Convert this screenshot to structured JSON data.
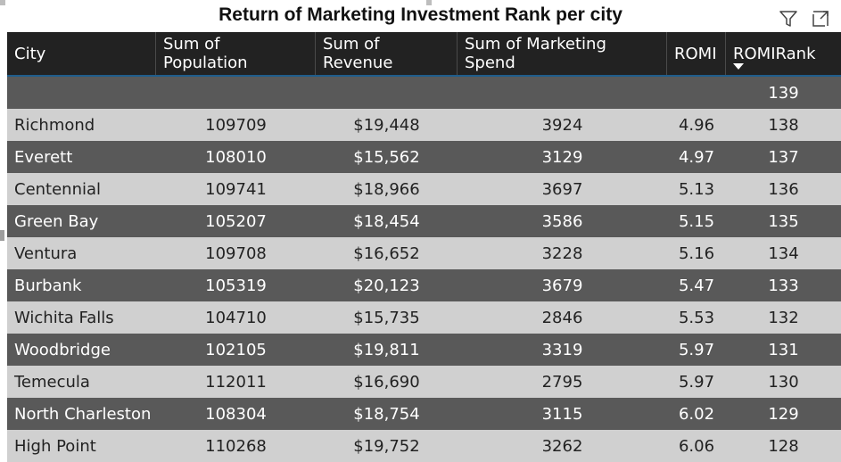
{
  "title": "Return of Marketing Investment Rank per city",
  "icons": [
    "filter-icon",
    "focus-mode-icon"
  ],
  "colors": {
    "header_bg": "#222222",
    "row_dark": "#595959",
    "row_light": "#d0d0d0",
    "accent": "#1f5d8c"
  },
  "columns": [
    "City",
    "Sum of Population",
    "Sum of Revenue",
    "Sum of Marketing Spend",
    "ROMI",
    "ROMIRank"
  ],
  "sort": {
    "column": "ROMIRank",
    "direction": "descending"
  },
  "rows": [
    {
      "city": "",
      "population": "",
      "revenue": "",
      "spend": "",
      "romi": "",
      "rank": "139"
    },
    {
      "city": "Richmond",
      "population": "109709",
      "revenue": "$19,448",
      "spend": "3924",
      "romi": "4.96",
      "rank": "138"
    },
    {
      "city": "Everett",
      "population": "108010",
      "revenue": "$15,562",
      "spend": "3129",
      "romi": "4.97",
      "rank": "137"
    },
    {
      "city": "Centennial",
      "population": "109741",
      "revenue": "$18,966",
      "spend": "3697",
      "romi": "5.13",
      "rank": "136"
    },
    {
      "city": "Green Bay",
      "population": "105207",
      "revenue": "$18,454",
      "spend": "3586",
      "romi": "5.15",
      "rank": "135"
    },
    {
      "city": "Ventura",
      "population": "109708",
      "revenue": "$16,652",
      "spend": "3228",
      "romi": "5.16",
      "rank": "134"
    },
    {
      "city": "Burbank",
      "population": "105319",
      "revenue": "$20,123",
      "spend": "3679",
      "romi": "5.47",
      "rank": "133"
    },
    {
      "city": "Wichita Falls",
      "population": "104710",
      "revenue": "$15,735",
      "spend": "2846",
      "romi": "5.53",
      "rank": "132"
    },
    {
      "city": "Woodbridge",
      "population": "102105",
      "revenue": "$19,811",
      "spend": "3319",
      "romi": "5.97",
      "rank": "131"
    },
    {
      "city": "Temecula",
      "population": "112011",
      "revenue": "$16,690",
      "spend": "2795",
      "romi": "5.97",
      "rank": "130"
    },
    {
      "city": "North Charleston",
      "population": "108304",
      "revenue": "$18,754",
      "spend": "3115",
      "romi": "6.02",
      "rank": "129"
    },
    {
      "city": "High Point",
      "population": "110268",
      "revenue": "$19,752",
      "spend": "3262",
      "romi": "6.06",
      "rank": "128"
    }
  ]
}
